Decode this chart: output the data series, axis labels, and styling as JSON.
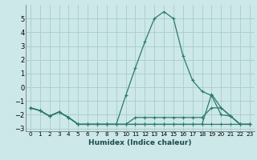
{
  "xlabel": "Humidex (Indice chaleur)",
  "background_color": "#cce8e8",
  "grid_color": "#aacccc",
  "line_color": "#2d7a6e",
  "xlim": [
    -0.5,
    23.5
  ],
  "ylim": [
    -3.2,
    6.0
  ],
  "yticks": [
    -3,
    -2,
    -1,
    0,
    1,
    2,
    3,
    4,
    5
  ],
  "xticks": [
    0,
    1,
    2,
    3,
    4,
    5,
    6,
    7,
    8,
    9,
    10,
    11,
    12,
    13,
    14,
    15,
    16,
    17,
    18,
    19,
    20,
    21,
    22,
    23
  ],
  "series": [
    {
      "x": [
        0,
        1,
        2,
        3,
        4,
        5,
        6,
        7,
        8,
        9,
        10,
        11,
        12,
        13,
        14,
        15,
        16,
        17,
        18,
        19,
        20,
        21,
        22,
        23
      ],
      "y": [
        -1.5,
        -1.7,
        -2.1,
        -1.8,
        -2.2,
        -2.7,
        -2.7,
        -2.7,
        -2.7,
        -2.7,
        -0.6,
        1.4,
        3.3,
        5.0,
        5.5,
        5.0,
        2.3,
        0.5,
        -0.3,
        -0.6,
        -2.0,
        -2.1,
        -2.7,
        -2.7
      ]
    },
    {
      "x": [
        0,
        1,
        2,
        3,
        4,
        5,
        6,
        7,
        8,
        9,
        10,
        11,
        12,
        13,
        14,
        15,
        16,
        17,
        18,
        19,
        20,
        21,
        22,
        23
      ],
      "y": [
        -1.5,
        -1.7,
        -2.1,
        -1.8,
        -2.2,
        -2.7,
        -2.7,
        -2.7,
        -2.7,
        -2.7,
        -2.7,
        -2.2,
        -2.2,
        -2.2,
        -2.2,
        -2.2,
        -2.2,
        -2.2,
        -2.2,
        -1.5,
        -1.5,
        -2.1,
        -2.7,
        -2.7
      ]
    },
    {
      "x": [
        0,
        1,
        2,
        3,
        4,
        5,
        6,
        7,
        8,
        9,
        10,
        11,
        12,
        13,
        14,
        15,
        16,
        17,
        18,
        19,
        20,
        21,
        22,
        23
      ],
      "y": [
        -1.5,
        -1.7,
        -2.1,
        -1.8,
        -2.2,
        -2.7,
        -2.7,
        -2.7,
        -2.7,
        -2.7,
        -2.7,
        -2.7,
        -2.7,
        -2.7,
        -2.7,
        -2.7,
        -2.7,
        -2.7,
        -2.7,
        -0.5,
        -1.5,
        -2.1,
        -2.7,
        -2.7
      ]
    },
    {
      "x": [
        0,
        1,
        2,
        3,
        4,
        5,
        6,
        7,
        8,
        9,
        10,
        11,
        12,
        13,
        14,
        15,
        16,
        17,
        18,
        19,
        20,
        21,
        22,
        23
      ],
      "y": [
        -1.5,
        -1.7,
        -2.1,
        -1.8,
        -2.2,
        -2.7,
        -2.7,
        -2.7,
        -2.7,
        -2.7,
        -2.7,
        -2.7,
        -2.7,
        -2.7,
        -2.7,
        -2.7,
        -2.7,
        -2.7,
        -2.7,
        -2.7,
        -2.7,
        -2.7,
        -2.7,
        -2.7
      ]
    }
  ]
}
